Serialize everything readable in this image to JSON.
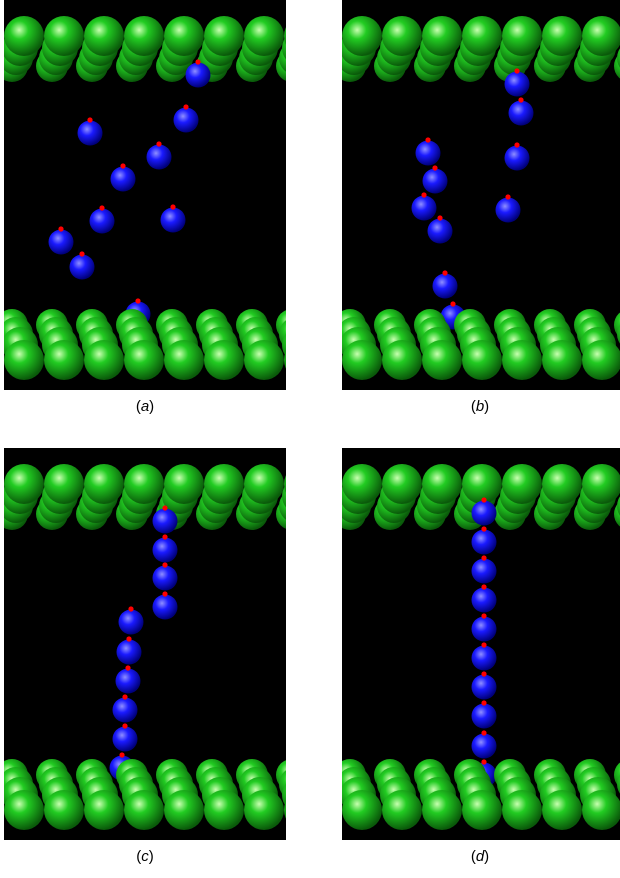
{
  "figure": {
    "panels": [
      {
        "id": "a",
        "label": "a",
        "particle_count": 10
      },
      {
        "id": "b",
        "label": "b",
        "particle_count": 10
      },
      {
        "id": "c",
        "label": "c",
        "particle_count": 10
      },
      {
        "id": "d",
        "label": "d",
        "particle_count": 10
      }
    ],
    "colors": {
      "background": "#000000",
      "wall_sphere": "#22cc22",
      "particle": "#1a1aff",
      "dipole_tip": "#ff0000",
      "page": "#ffffff"
    }
  }
}
